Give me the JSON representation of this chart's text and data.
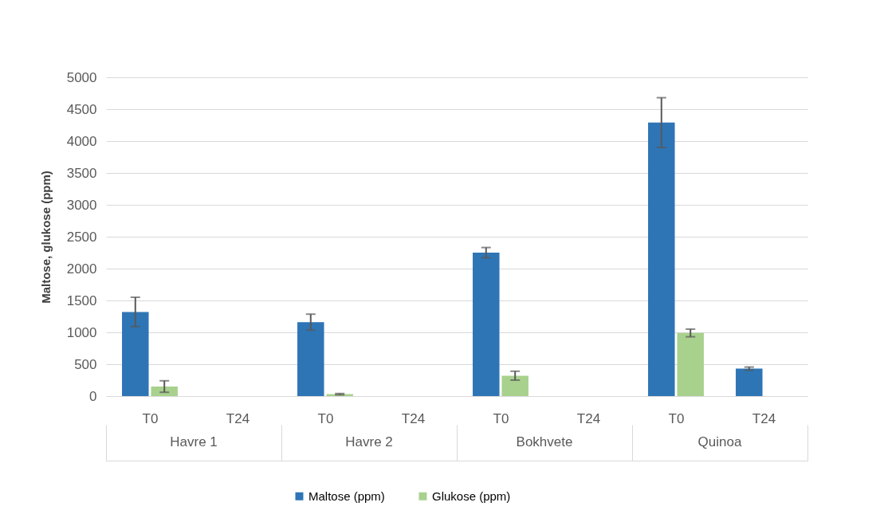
{
  "chart_data": {
    "type": "bar",
    "ylabel": "Maltose, glukose (ppm)",
    "categories": [
      "T0",
      "T24",
      "T0",
      "T24",
      "T0",
      "T24",
      "T0",
      "T24"
    ],
    "series": [
      {
        "name": "Maltose (ppm)",
        "color": "#2e75b6",
        "values": [
          1320,
          null,
          1160,
          null,
          2250,
          null,
          4290,
          430
        ],
        "errors": [
          230,
          null,
          125,
          null,
          80,
          null,
          390,
          25
        ]
      },
      {
        "name": "Glukose (ppm)",
        "color": "#a9d18e",
        "values": [
          150,
          null,
          30,
          null,
          320,
          null,
          990,
          null
        ],
        "errors": [
          90,
          null,
          10,
          null,
          70,
          null,
          60,
          null
        ]
      }
    ],
    "annotations": [
      "Havre 1",
      "Havre 2",
      "Bokhvete",
      "Quinoa"
    ],
    "ylim": [
      0,
      5000
    ],
    "yticks": [
      0,
      500,
      1000,
      1500,
      2000,
      2500,
      3000,
      3500,
      4000,
      4500,
      5000
    ],
    "grid": "y",
    "legend": "bottom"
  }
}
